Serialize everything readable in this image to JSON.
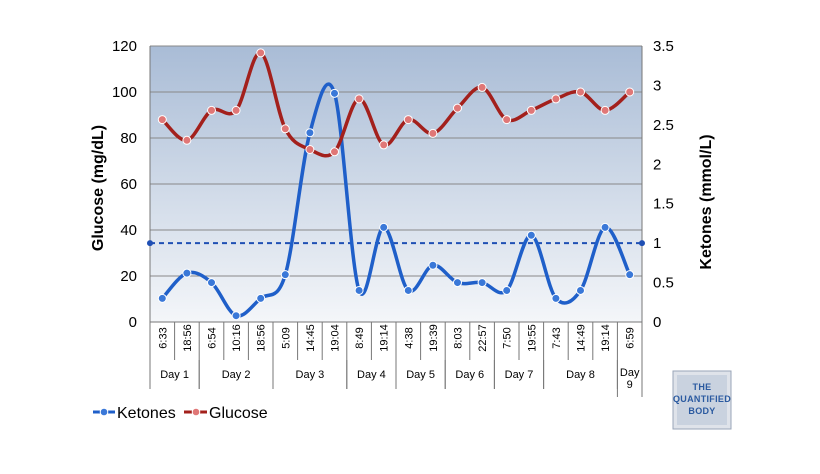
{
  "chart_data": {
    "type": "line",
    "title": "",
    "x": [
      "6:33",
      "18:56",
      "6:54",
      "10:16",
      "18:56",
      "5:09",
      "14:45",
      "19:04",
      "8:49",
      "19:14",
      "4:38",
      "19:39",
      "8:03",
      "22:57",
      "7:50",
      "19:55",
      "7:43",
      "14:49",
      "19:14",
      "6:59"
    ],
    "day_groups": [
      {
        "label": "Day 1",
        "start": 0,
        "count": 2
      },
      {
        "label": "Day 2",
        "start": 2,
        "count": 3
      },
      {
        "label": "Day 3",
        "start": 5,
        "count": 3
      },
      {
        "label": "Day 4",
        "start": 8,
        "count": 2
      },
      {
        "label": "Day 5",
        "start": 10,
        "count": 2
      },
      {
        "label": "Day 6",
        "start": 12,
        "count": 2
      },
      {
        "label": "Day 7",
        "start": 14,
        "count": 2
      },
      {
        "label": "Day 8",
        "start": 16,
        "count": 3
      },
      {
        "label": "Day 9",
        "start": 19,
        "count": 1,
        "lines": [
          "Day",
          "9"
        ]
      }
    ],
    "series": [
      {
        "name": "Ketones",
        "axis": "right",
        "color": "#1f5fc9",
        "values": [
          0.3,
          0.62,
          0.5,
          0.08,
          0.3,
          0.6,
          2.4,
          2.9,
          0.4,
          1.2,
          0.4,
          0.72,
          0.5,
          0.5,
          0.4,
          1.1,
          0.3,
          0.4,
          1.2,
          0.6
        ]
      },
      {
        "name": "Glucose",
        "axis": "left",
        "color": "#a3201c",
        "values": [
          88,
          79,
          92,
          92,
          117,
          84,
          75,
          74,
          97,
          77,
          88,
          82,
          93,
          102,
          88,
          92,
          97,
          100,
          92,
          100
        ]
      }
    ],
    "y_left": {
      "label": "Glucose (mg/dL)",
      "min": 0,
      "max": 120,
      "ticks": [
        "0",
        "20",
        "40",
        "60",
        "80",
        "100",
        "120"
      ]
    },
    "y_right": {
      "label": "Ketones (mmol/L)",
      "min": 0,
      "max": 3.5,
      "ticks": [
        "0",
        "0.5",
        "1",
        "1.5",
        "2",
        "2.5",
        "3",
        "3.5"
      ]
    },
    "reference_line": {
      "axis": "right",
      "value": 1.0,
      "style": "dashed",
      "color": "#1f4fb4"
    },
    "grid": true,
    "legend_position": "bottom-left",
    "colors": {
      "plot_top": "#a9bcd6",
      "plot_bottom": "#f3f5f8",
      "grid": "#888888"
    }
  },
  "logo": {
    "lines": [
      "THE",
      "QUANTIFIED",
      "BODY"
    ]
  }
}
